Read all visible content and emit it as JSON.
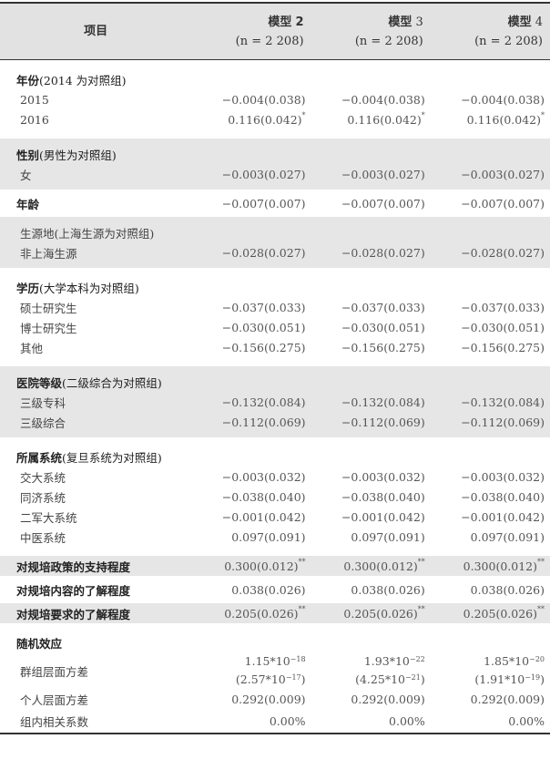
{
  "header": {
    "item": "项目",
    "models": [
      {
        "name": "模型",
        "num": "2",
        "n": "(n = 2 208)"
      },
      {
        "name": "模型",
        "num": "3",
        "n": "(n = 2 208)"
      },
      {
        "name": "模型",
        "num": "4",
        "n": "(n = 2 208)"
      }
    ]
  },
  "groups": [
    {
      "title": "年份",
      "note": "(2014 为对照组)",
      "shaded": false,
      "rows": [
        {
          "label": "2015",
          "values": [
            {
              "v": "−0.004(0.038)",
              "sig": ""
            },
            {
              "v": "−0.004(0.038)",
              "sig": ""
            },
            {
              "v": "−0.004(0.038)",
              "sig": ""
            }
          ]
        },
        {
          "label": "2016",
          "values": [
            {
              "v": "0.116(0.042)",
              "sig": "*"
            },
            {
              "v": "0.116(0.042)",
              "sig": "*"
            },
            {
              "v": "0.116(0.042)",
              "sig": "*"
            }
          ]
        }
      ]
    },
    {
      "title": "性别",
      "note": "(男性为对照组)",
      "shaded": true,
      "rows": [
        {
          "label": "女",
          "values": [
            {
              "v": "−0.003(0.027)",
              "sig": ""
            },
            {
              "v": "−0.003(0.027)",
              "sig": ""
            },
            {
              "v": "−0.003(0.027)",
              "sig": ""
            }
          ]
        }
      ]
    },
    {
      "title": "年龄",
      "note": "",
      "shaded": false,
      "inline": true,
      "values": [
        {
          "v": "−0.007(0.007)",
          "sig": ""
        },
        {
          "v": "−0.007(0.007)",
          "sig": ""
        },
        {
          "v": "−0.007(0.007)",
          "sig": ""
        }
      ]
    },
    {
      "title": "",
      "note": "",
      "shaded": true,
      "rows": [
        {
          "label": "生源地(上海生源为对照组)",
          "values": [
            {
              "v": "",
              "sig": ""
            },
            {
              "v": "",
              "sig": ""
            },
            {
              "v": "",
              "sig": ""
            }
          ]
        },
        {
          "label": "非上海生源",
          "values": [
            {
              "v": "−0.028(0.027)",
              "sig": ""
            },
            {
              "v": "−0.028(0.027)",
              "sig": ""
            },
            {
              "v": "−0.028(0.027)",
              "sig": ""
            }
          ]
        }
      ]
    },
    {
      "title": "学历",
      "note": "(大学本科为对照组)",
      "shaded": false,
      "rows": [
        {
          "label": "硕士研究生",
          "values": [
            {
              "v": "−0.037(0.033)",
              "sig": ""
            },
            {
              "v": "−0.037(0.033)",
              "sig": ""
            },
            {
              "v": "−0.037(0.033)",
              "sig": ""
            }
          ]
        },
        {
          "label": "博士研究生",
          "values": [
            {
              "v": "−0.030(0.051)",
              "sig": ""
            },
            {
              "v": "−0.030(0.051)",
              "sig": ""
            },
            {
              "v": "−0.030(0.051)",
              "sig": ""
            }
          ]
        },
        {
          "label": "其他",
          "values": [
            {
              "v": "−0.156(0.275)",
              "sig": ""
            },
            {
              "v": "−0.156(0.275)",
              "sig": ""
            },
            {
              "v": "−0.156(0.275)",
              "sig": ""
            }
          ]
        }
      ]
    },
    {
      "title": "医院等级",
      "note": "(二级综合为对照组)",
      "shaded": true,
      "rows": [
        {
          "label": "三级专科",
          "values": [
            {
              "v": "−0.132(0.084)",
              "sig": ""
            },
            {
              "v": "−0.132(0.084)",
              "sig": ""
            },
            {
              "v": "−0.132(0.084)",
              "sig": ""
            }
          ]
        },
        {
          "label": "三级综合",
          "values": [
            {
              "v": "−0.112(0.069)",
              "sig": ""
            },
            {
              "v": "−0.112(0.069)",
              "sig": ""
            },
            {
              "v": "−0.112(0.069)",
              "sig": ""
            }
          ]
        }
      ]
    },
    {
      "title": "所属系统",
      "note": "(复旦系统为对照组)",
      "shaded": false,
      "rows": [
        {
          "label": "交大系统",
          "values": [
            {
              "v": "−0.003(0.032)",
              "sig": ""
            },
            {
              "v": "−0.003(0.032)",
              "sig": ""
            },
            {
              "v": "−0.003(0.032)",
              "sig": ""
            }
          ]
        },
        {
          "label": "同济系统",
          "values": [
            {
              "v": "−0.038(0.040)",
              "sig": ""
            },
            {
              "v": "−0.038(0.040)",
              "sig": ""
            },
            {
              "v": "−0.038(0.040)",
              "sig": ""
            }
          ]
        },
        {
          "label": "二军大系统",
          "values": [
            {
              "v": "−0.001(0.042)",
              "sig": ""
            },
            {
              "v": "−0.001(0.042)",
              "sig": ""
            },
            {
              "v": "−0.001(0.042)",
              "sig": ""
            }
          ]
        },
        {
          "label": "中医系统",
          "values": [
            {
              "v": "0.097(0.091)",
              "sig": ""
            },
            {
              "v": "0.097(0.091)",
              "sig": ""
            },
            {
              "v": "0.097(0.091)",
              "sig": ""
            }
          ]
        }
      ]
    },
    {
      "title": "对规培政策的支持程度",
      "note": "",
      "shaded": true,
      "inline": true,
      "values": [
        {
          "v": "0.300(0.012)",
          "sig": "**"
        },
        {
          "v": "0.300(0.012)",
          "sig": "**"
        },
        {
          "v": "0.300(0.012)",
          "sig": "**"
        }
      ]
    },
    {
      "title": "对规培内容的了解程度",
      "note": "",
      "shaded": false,
      "inline": true,
      "values": [
        {
          "v": "0.038(0.026)",
          "sig": ""
        },
        {
          "v": "0.038(0.026)",
          "sig": ""
        },
        {
          "v": "0.038(0.026)",
          "sig": ""
        }
      ]
    },
    {
      "title": "对规培要求的了解程度",
      "note": "",
      "shaded": true,
      "inline": true,
      "values": [
        {
          "v": "0.205(0.026)",
          "sig": "**"
        },
        {
          "v": "0.205(0.026)",
          "sig": "**"
        },
        {
          "v": "0.205(0.026)",
          "sig": "**"
        }
      ]
    }
  ],
  "random_effects": {
    "title": "随机效应",
    "group_variance": {
      "label": "群组层面方差",
      "values": [
        {
          "m": "1.15",
          "e": "−18",
          "sm": "2.57",
          "se": "−17"
        },
        {
          "m": "1.93",
          "e": "−22",
          "sm": "4.25",
          "se": "−21"
        },
        {
          "m": "1.85",
          "e": "−20",
          "sm": "1.91",
          "se": "−19"
        }
      ]
    },
    "individual_variance": {
      "label": "个人层面方差",
      "values": [
        "0.292(0.009)",
        "0.292(0.009)",
        "0.292(0.009)"
      ]
    },
    "icc": {
      "label": "组内相关系数",
      "values": [
        "0.00%",
        "0.00%",
        "0.00%"
      ]
    }
  }
}
